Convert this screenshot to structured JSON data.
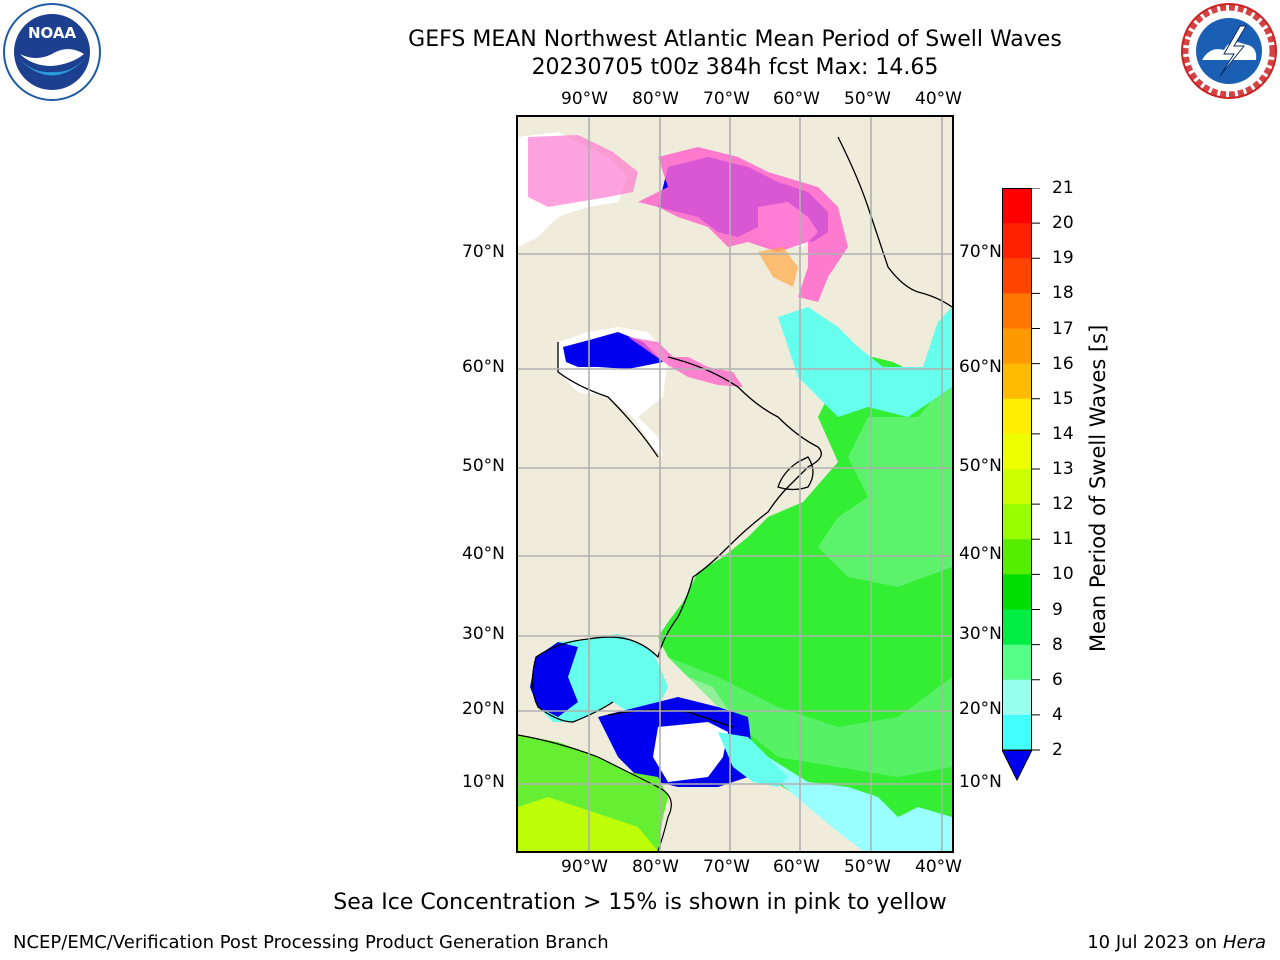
{
  "title": {
    "line1": "GEFS MEAN Northwest Atlantic Mean Period of Swell Waves",
    "line2": "20230705 t00z 384h fcst   Max: 14.65"
  },
  "map": {
    "lon_labels": [
      "90°W",
      "80°W",
      "70°W",
      "60°W",
      "50°W",
      "40°W"
    ],
    "lat_labels": [
      "70°N",
      "60°N",
      "50°N",
      "40°N",
      "30°N",
      "20°N",
      "10°N"
    ],
    "colors": {
      "land": "#efecdc",
      "ocean_green": "#33ee33",
      "ocean_lightgreen": "#55f07a",
      "ocean_cyan": "#66ffee",
      "ocean_lightcyan": "#99ffff",
      "ocean_blue": "#0000ee",
      "ice_pink": "#ff66cc",
      "ice_orange": "#ffaa44",
      "gridline": "#b0b0b0"
    }
  },
  "colorbar": {
    "title": "Mean Period of Swell Waves [s]",
    "ticks": [
      "21",
      "20",
      "19",
      "18",
      "17",
      "16",
      "15",
      "14",
      "13",
      "12",
      "11",
      "10",
      "9",
      "8",
      "6",
      "4",
      "2"
    ],
    "colors": [
      "#ff0000",
      "#ff2200",
      "#ff4400",
      "#ff7700",
      "#ff9900",
      "#ffbb00",
      "#ffee00",
      "#eeff00",
      "#ccff00",
      "#99ff00",
      "#55ee00",
      "#00dd00",
      "#00ee44",
      "#55ff88",
      "#99ffee",
      "#44ffff",
      "#00eeff",
      "#0088ff",
      "#0000ee"
    ]
  },
  "note": "Sea Ice Concentration > 15% is shown in pink to yellow",
  "footer": {
    "left": "NCEP/EMC/Verification Post Processing Product Generation Branch",
    "right_date": "10 Jul 2023 on ",
    "right_host": "Hera"
  },
  "logos": {
    "noaa_text": "NOAA",
    "noaa_ring": "NATIONAL OCEANIC AND ATMOSPHERIC ADMINISTRATION · U.S. DEPARTMENT OF COMMERCE",
    "nws_ring": "NATIONAL WEATHER SERVICE"
  }
}
